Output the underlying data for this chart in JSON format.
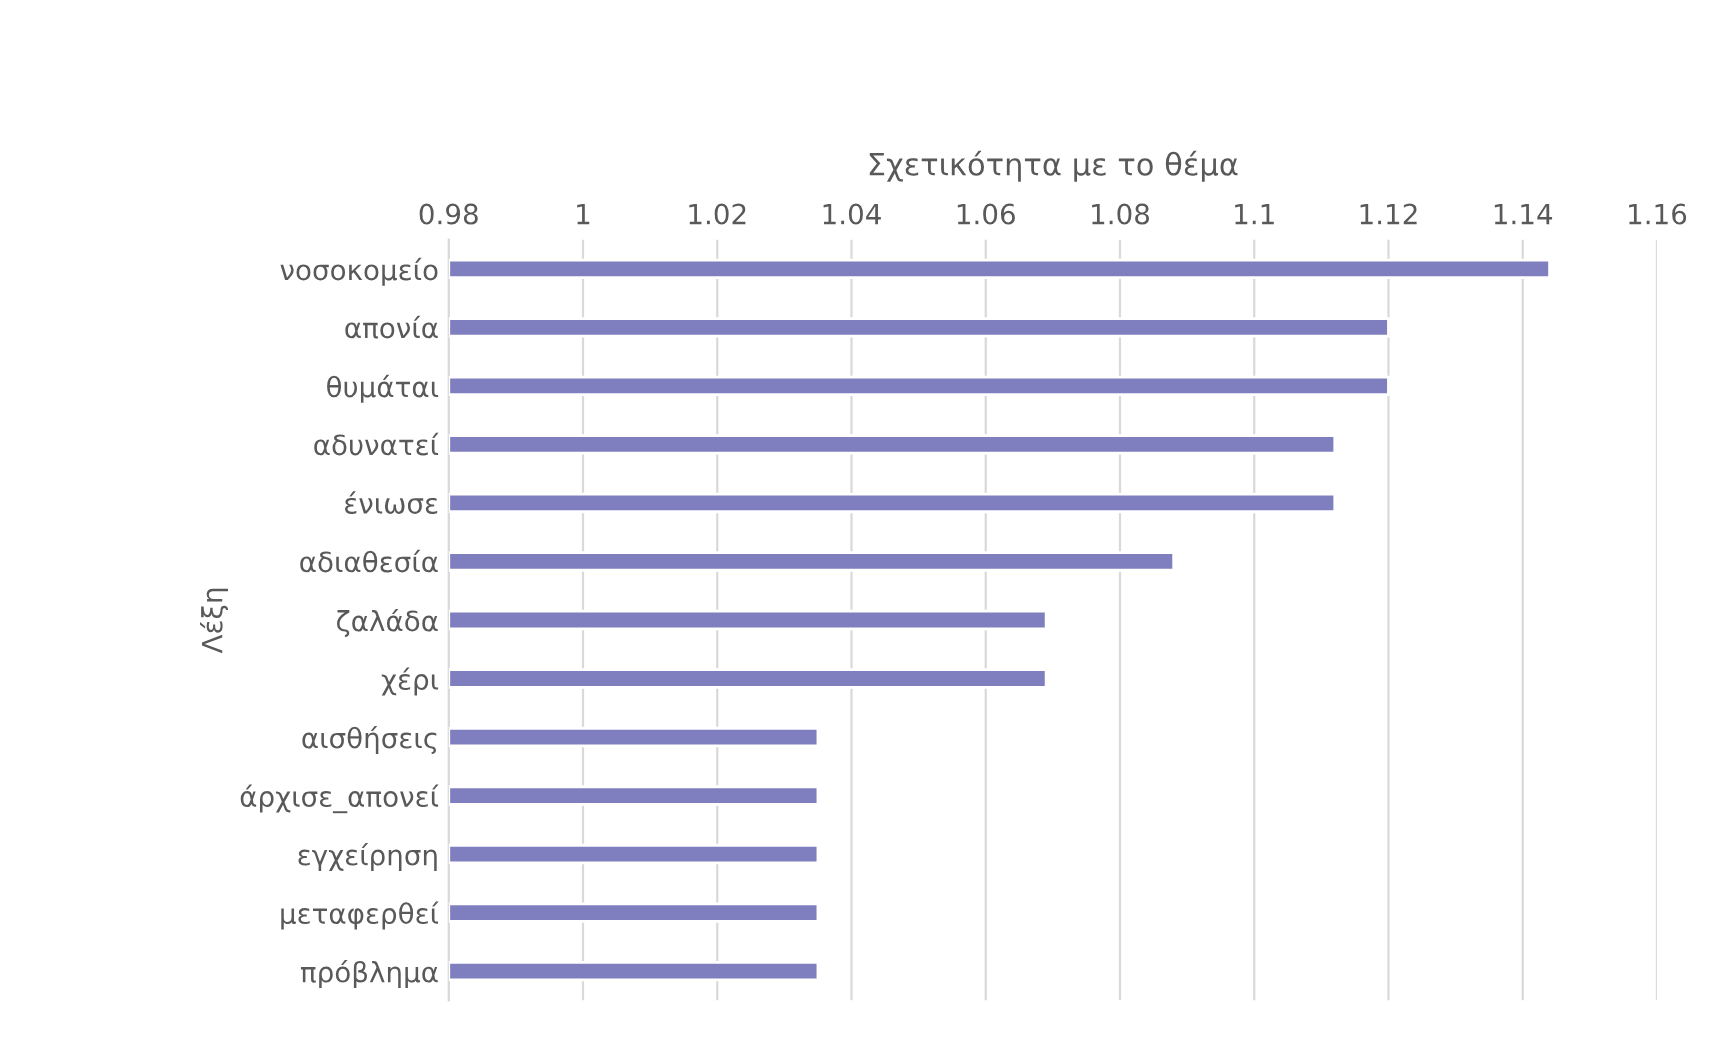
{
  "chart_data": {
    "type": "bar",
    "orientation": "horizontal",
    "xlabel": "Σχετικότητα με το θέμα",
    "ylabel": "Λέξη",
    "categories": [
      "νοσοκομείο",
      "απονία",
      "θυμάται",
      "αδυνατεί",
      "ένιωσε",
      "αδιαθεσία",
      "ζαλάδα",
      "χέρι",
      "αισθήσεις",
      "άρχισε_απονεί",
      "εγχείρηση",
      "μεταφερθεί",
      "πρόβλημα"
    ],
    "values": [
      1.144,
      1.12,
      1.12,
      1.112,
      1.112,
      1.088,
      1.069,
      1.069,
      1.035,
      1.035,
      1.035,
      1.035,
      1.035
    ],
    "color": "#7f7fbf",
    "xlim": [
      0.98,
      1.16
    ],
    "xticks": [
      0.98,
      1,
      1.02,
      1.04,
      1.06,
      1.08,
      1.1,
      1.12,
      1.14,
      1.16
    ],
    "grid": "x"
  }
}
